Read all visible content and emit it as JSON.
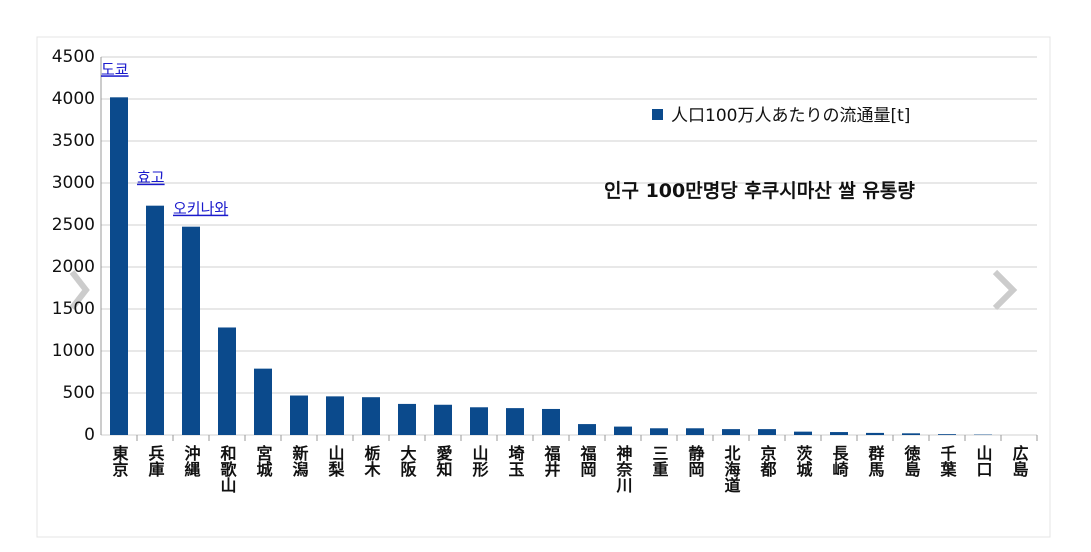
{
  "chart_data": {
    "type": "bar",
    "subtitle": "인구 100만명당 후쿠시마산 쌀 유통량",
    "categories": [
      "東京",
      "兵庫",
      "沖縄",
      "和歌山",
      "宮城",
      "新潟",
      "山梨",
      "栃木",
      "大阪",
      "愛知",
      "山形",
      "埼玉",
      "福井",
      "福岡",
      "神奈川",
      "三重",
      "静岡",
      "北海道",
      "京都",
      "茨城",
      "長崎",
      "群馬",
      "徳島",
      "千葉",
      "山口",
      "広島"
    ],
    "series": [
      {
        "name": "人口100万人あたりの流通量[t]",
        "color": "#0b4a8c",
        "values": [
          4020,
          2730,
          2480,
          1280,
          790,
          470,
          460,
          450,
          370,
          360,
          330,
          320,
          310,
          130,
          100,
          80,
          80,
          70,
          70,
          40,
          35,
          25,
          20,
          10,
          5,
          0
        ]
      }
    ],
    "annotations": [
      "도쿄",
      "효고",
      "오키나와"
    ],
    "ylim": [
      0,
      4500
    ],
    "yticks": [
      0,
      500,
      1000,
      1500,
      2000,
      2500,
      3000,
      3500,
      4000,
      4500
    ],
    "grid": true,
    "legend": "upper right"
  }
}
